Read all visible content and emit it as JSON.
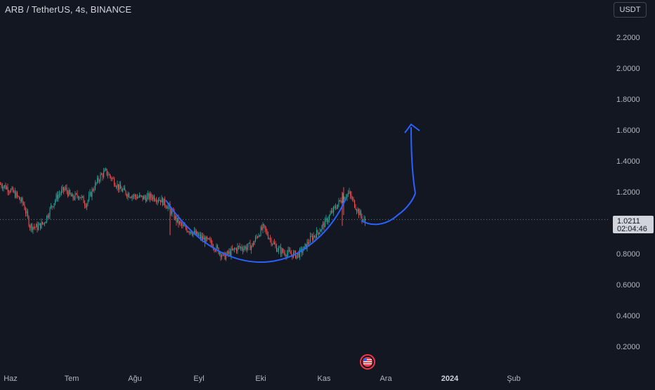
{
  "header": {
    "symbol_title": "ARB / TetherUS, 4s, BINANCE",
    "currency_label": "USDT"
  },
  "price_label": {
    "price": "1.0211",
    "countdown": "02:04:46"
  },
  "colors": {
    "background": "#131722",
    "up_candle": "#26a69a",
    "down_candle": "#ef5350",
    "drawing": "#2962ff",
    "axis_text": "#b2b5be",
    "last_price_line": "#787b86"
  },
  "events_icon": "us-flag-icon",
  "chart_data": {
    "type": "candlestick",
    "symbol": "ARB / TetherUS",
    "interval": "4s",
    "exchange": "BINANCE",
    "x_ticks": [
      "Haz",
      "Tem",
      "Ağu",
      "Eyl",
      "Eki",
      "Kas",
      "Ara",
      "2024",
      "Şub"
    ],
    "y_ticks": [
      "2.2000",
      "2.0000",
      "1.8000",
      "1.6000",
      "1.4000",
      "1.2000",
      "0.8000",
      "0.6000",
      "0.4000",
      "0.2000"
    ],
    "ylim": [
      0.1,
      2.3
    ],
    "last_price": 1.0211,
    "approx_close_path": [
      [
        0,
        1.25
      ],
      [
        12,
        1.22
      ],
      [
        22,
        1.18
      ],
      [
        33,
        1.12
      ],
      [
        42,
        0.98
      ],
      [
        52,
        0.97
      ],
      [
        62,
        1.0
      ],
      [
        72,
        1.1
      ],
      [
        82,
        1.18
      ],
      [
        92,
        1.22
      ],
      [
        102,
        1.16
      ],
      [
        112,
        1.18
      ],
      [
        122,
        1.12
      ],
      [
        132,
        1.22
      ],
      [
        142,
        1.3
      ],
      [
        150,
        1.33
      ],
      [
        160,
        1.28
      ],
      [
        170,
        1.22
      ],
      [
        180,
        1.19
      ],
      [
        192,
        1.17
      ],
      [
        204,
        1.16
      ],
      [
        216,
        1.17
      ],
      [
        228,
        1.15
      ],
      [
        240,
        1.1
      ],
      [
        250,
        1.02
      ],
      [
        260,
        0.97
      ],
      [
        270,
        0.95
      ],
      [
        280,
        0.92
      ],
      [
        290,
        0.89
      ],
      [
        300,
        0.87
      ],
      [
        310,
        0.82
      ],
      [
        318,
        0.78
      ],
      [
        328,
        0.81
      ],
      [
        338,
        0.84
      ],
      [
        348,
        0.84
      ],
      [
        358,
        0.85
      ],
      [
        366,
        0.92
      ],
      [
        374,
        0.97
      ],
      [
        382,
        0.91
      ],
      [
        392,
        0.84
      ],
      [
        402,
        0.81
      ],
      [
        412,
        0.8
      ],
      [
        422,
        0.79
      ],
      [
        432,
        0.83
      ],
      [
        442,
        0.9
      ],
      [
        452,
        0.94
      ],
      [
        462,
        1.0
      ],
      [
        472,
        1.07
      ],
      [
        480,
        1.12
      ],
      [
        488,
        1.17
      ],
      [
        496,
        1.19
      ],
      [
        504,
        1.12
      ],
      [
        512,
        1.05
      ],
      [
        519,
        1.0
      ]
    ]
  }
}
